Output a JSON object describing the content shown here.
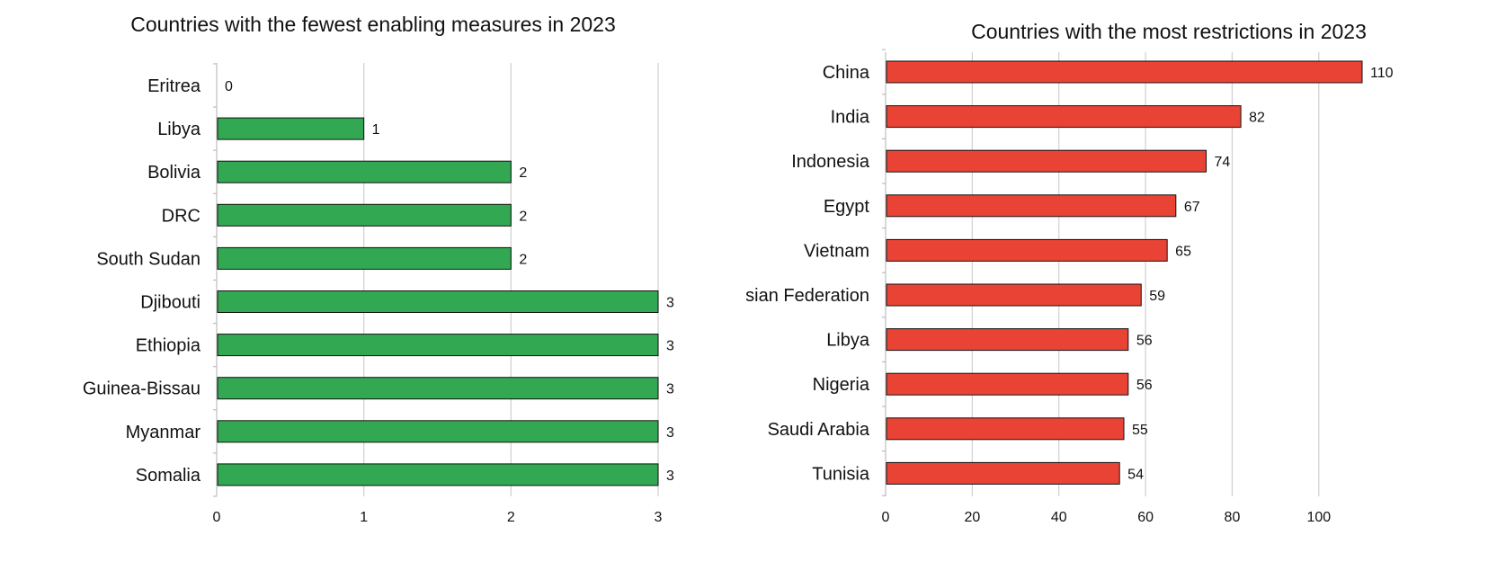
{
  "chart_data": [
    {
      "type": "bar",
      "orientation": "horizontal",
      "title": "Countries with the fewest enabling measures in 2023",
      "categories": [
        "Eritrea",
        "Libya",
        "Bolivia",
        "DRC",
        "South Sudan",
        "Djibouti",
        "Ethiopia",
        "Guinea-Bissau",
        "Myanmar",
        "Somalia"
      ],
      "values": [
        0,
        1,
        2,
        2,
        2,
        3,
        3,
        3,
        3,
        3
      ],
      "xlim": [
        0,
        3
      ],
      "xticks": [
        0,
        1,
        2,
        3
      ],
      "grid": true,
      "color": "#33a853"
    },
    {
      "type": "bar",
      "orientation": "horizontal",
      "title": "Countries with the most restrictions in 2023",
      "categories": [
        "China",
        "India",
        "Indonesia",
        "Egypt",
        "Vietnam",
        "Russian Federation",
        "Libya",
        "Nigeria",
        "Saudi Arabia",
        "Tunisia"
      ],
      "values": [
        110,
        82,
        74,
        67,
        65,
        59,
        56,
        56,
        55,
        54
      ],
      "xlim": [
        0,
        110
      ],
      "xticks": [
        0,
        20,
        40,
        60,
        80,
        100
      ],
      "grid": true,
      "color": "#e94335"
    }
  ]
}
